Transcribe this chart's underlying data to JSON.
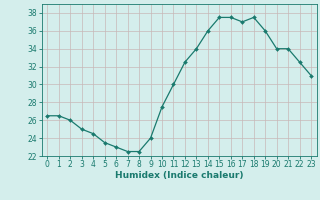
{
  "x": [
    0,
    1,
    2,
    3,
    4,
    5,
    6,
    7,
    8,
    9,
    10,
    11,
    12,
    13,
    14,
    15,
    16,
    17,
    18,
    19,
    20,
    21,
    22,
    23
  ],
  "y": [
    26.5,
    26.5,
    26.0,
    25.0,
    24.5,
    23.5,
    23.0,
    22.5,
    22.5,
    24.0,
    27.5,
    30.0,
    32.5,
    34.0,
    36.0,
    37.5,
    37.5,
    37.0,
    37.5,
    36.0,
    34.0,
    34.0,
    32.5,
    31.0
  ],
  "bg_color": "#d4eeec",
  "grid_color": "#c8dada",
  "line_color": "#1a7a6e",
  "marker_color": "#1a7a6e",
  "xlabel": "Humidex (Indice chaleur)",
  "xlim": [
    -0.5,
    23.5
  ],
  "ylim": [
    22,
    39
  ],
  "yticks": [
    22,
    24,
    26,
    28,
    30,
    32,
    34,
    36,
    38
  ],
  "xticks": [
    0,
    1,
    2,
    3,
    4,
    5,
    6,
    7,
    8,
    9,
    10,
    11,
    12,
    13,
    14,
    15,
    16,
    17,
    18,
    19,
    20,
    21,
    22,
    23
  ],
  "label_fontsize": 6.5,
  "tick_fontsize": 5.5
}
